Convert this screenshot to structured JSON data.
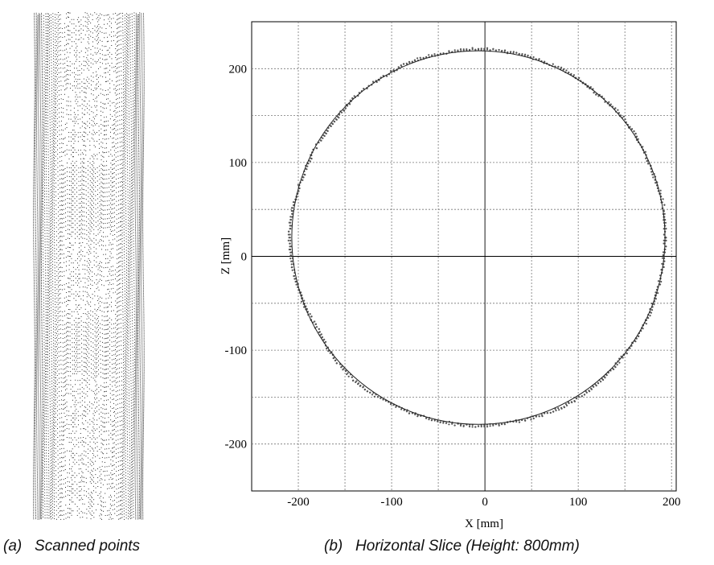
{
  "captions": {
    "a": "(a)   Scanned points",
    "b": "(b)   Horizontal Slice (Height: 800mm)"
  },
  "chart_data": [
    {
      "type": "image",
      "description_id": "scanned-points-cylinder",
      "color": "#000000"
    },
    {
      "type": "scatter",
      "xlabel": "X [mm]",
      "ylabel": "Z [mm]",
      "xlim": [
        -250,
        205
      ],
      "ylim": [
        -250,
        250
      ],
      "xticks": [
        -200,
        -100,
        0,
        100,
        200
      ],
      "yticks": [
        -200,
        -100,
        0,
        100,
        200
      ],
      "grid": true,
      "series": [
        {
          "kind": "fit-circle",
          "center": [
            -7,
            20
          ],
          "radius": 200,
          "color": "#222222"
        },
        {
          "kind": "scan-points",
          "color": "#555555",
          "points_polar_deg_radius": [
            [
              0,
              200
            ],
            [
              10,
              201
            ],
            [
              20,
              199
            ],
            [
              30,
              200
            ],
            [
              40,
              201
            ],
            [
              50,
              199
            ],
            [
              60,
              201
            ],
            [
              70,
              200
            ],
            [
              80,
              200
            ],
            [
              90,
              201
            ],
            [
              100,
              200
            ],
            [
              110,
              201
            ],
            [
              120,
              199
            ],
            [
              130,
              200
            ],
            [
              140,
              198
            ],
            [
              150,
              199
            ],
            [
              160,
              199
            ],
            [
              170,
              201
            ],
            [
              180,
              203
            ],
            [
              185,
              202
            ],
            [
              190,
              201
            ],
            [
              200,
              200
            ],
            [
              210,
              198
            ],
            [
              220,
              201
            ],
            [
              230,
              202
            ],
            [
              240,
              201
            ],
            [
              250,
              200
            ],
            [
              260,
              200
            ],
            [
              270,
              201
            ],
            [
              280,
              200
            ],
            [
              290,
              201
            ],
            [
              300,
              202
            ],
            [
              310,
              201
            ],
            [
              320,
              200
            ],
            [
              330,
              201
            ],
            [
              340,
              200
            ],
            [
              350,
              200
            ]
          ]
        }
      ]
    }
  ]
}
